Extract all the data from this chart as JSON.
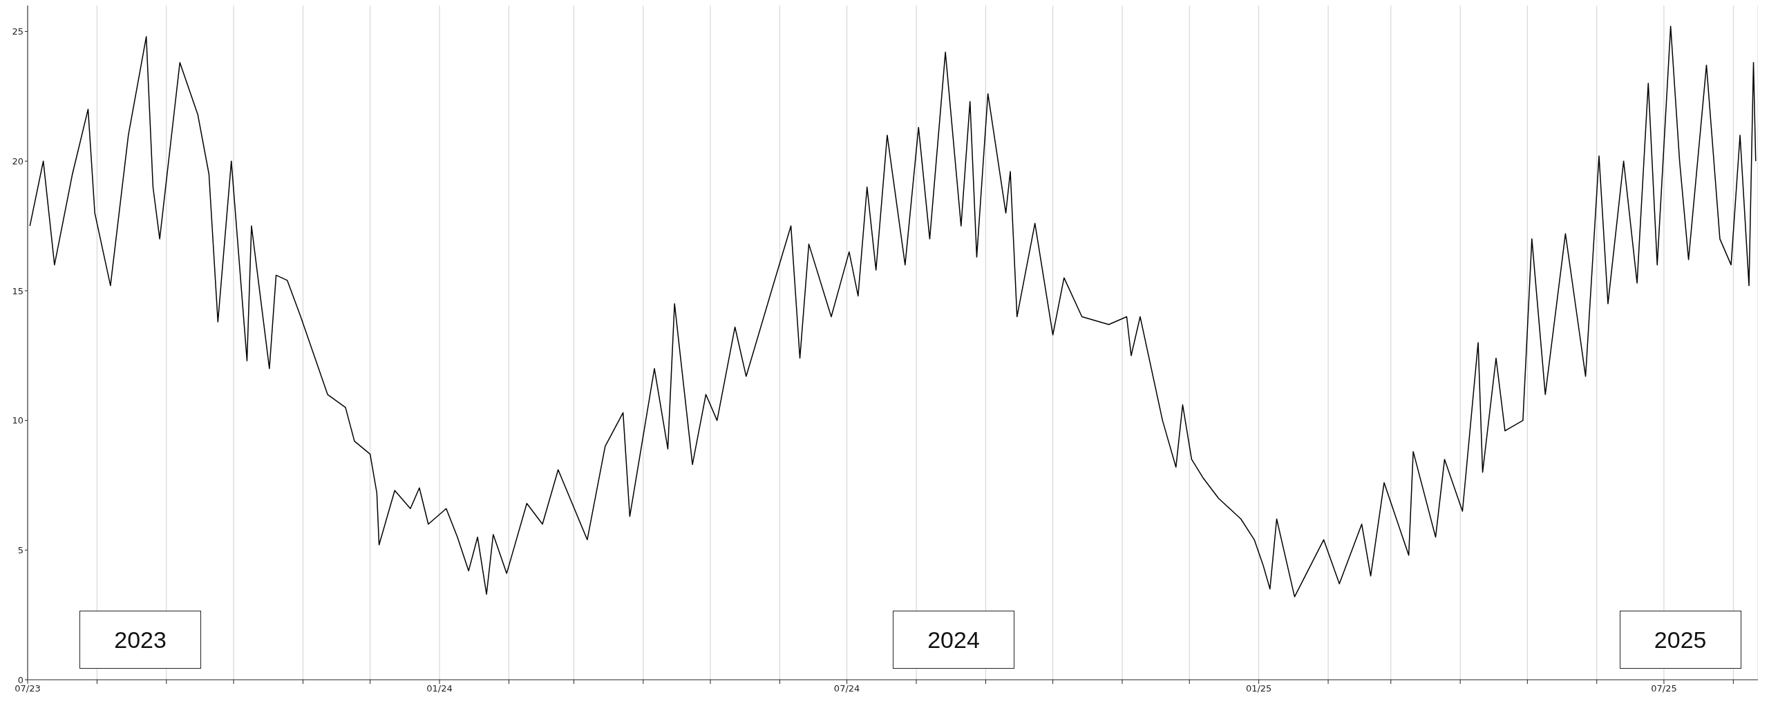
{
  "chart_data": {
    "type": "line",
    "x": [
      "2023-07-02",
      "2023-07-08",
      "2023-07-13",
      "2023-07-21",
      "2023-07-28",
      "2023-07-31",
      "2023-08-07",
      "2023-08-15",
      "2023-08-23",
      "2023-08-26",
      "2023-08-29",
      "2023-09-07",
      "2023-09-15",
      "2023-09-20",
      "2023-09-24",
      "2023-09-30",
      "2023-10-07",
      "2023-10-09",
      "2023-10-17",
      "2023-10-20",
      "2023-10-25",
      "2023-10-31",
      "2023-11-06",
      "2023-11-12",
      "2023-11-20",
      "2023-11-24",
      "2023-12-01",
      "2023-12-04",
      "2023-12-05",
      "2023-12-12",
      "2023-12-19",
      "2023-12-23",
      "2023-12-27",
      "2024-01-04",
      "2024-01-09",
      "2024-01-14",
      "2024-01-18",
      "2024-01-22",
      "2024-01-25",
      "2024-01-31",
      "2024-02-09",
      "2024-02-16",
      "2024-02-23",
      "2024-03-07",
      "2024-03-15",
      "2024-03-23",
      "2024-03-26",
      "2024-04-06",
      "2024-04-12",
      "2024-04-15",
      "2024-04-23",
      "2024-04-29",
      "2024-05-04",
      "2024-05-12",
      "2024-05-17",
      "2024-05-29",
      "2024-06-06",
      "2024-06-10",
      "2024-06-14",
      "2024-06-24",
      "2024-07-02",
      "2024-07-06",
      "2024-07-10",
      "2024-07-14",
      "2024-07-19",
      "2024-07-27",
      "2024-08-02",
      "2024-08-07",
      "2024-08-14",
      "2024-08-21",
      "2024-08-25",
      "2024-08-28",
      "2024-09-02",
      "2024-09-10",
      "2024-09-12",
      "2024-09-15",
      "2024-09-23",
      "2024-10-01",
      "2024-10-06",
      "2024-10-14",
      "2024-10-26",
      "2024-11-03",
      "2024-11-05",
      "2024-11-09",
      "2024-11-19",
      "2024-11-25",
      "2024-11-28",
      "2024-12-02",
      "2024-12-07",
      "2024-12-14",
      "2024-12-24",
      "2024-12-30",
      "2025-01-03",
      "2025-01-06",
      "2025-01-09",
      "2025-01-17",
      "2025-01-30",
      "2025-02-06",
      "2025-02-16",
      "2025-02-20",
      "2025-02-26",
      "2025-03-09",
      "2025-03-11",
      "2025-03-21",
      "2025-03-25",
      "2025-04-02",
      "2025-04-09",
      "2025-04-11",
      "2025-04-17",
      "2025-04-21",
      "2025-04-29",
      "2025-05-03",
      "2025-05-09",
      "2025-05-18",
      "2025-05-27",
      "2025-06-02",
      "2025-06-06",
      "2025-06-13",
      "2025-06-19",
      "2025-06-24",
      "2025-06-28",
      "2025-07-04",
      "2025-07-08",
      "2025-07-12",
      "2025-07-20",
      "2025-07-26",
      "2025-07-31",
      "2025-08-04",
      "2025-08-08",
      "2025-08-10",
      "2025-08-11"
    ],
    "series": [
      {
        "color": "#000000",
        "values": [
          17.5,
          20,
          16,
          19.5,
          22,
          18,
          15.2,
          21,
          24.8,
          19,
          17,
          23.8,
          21.8,
          19.5,
          13.8,
          20,
          12.3,
          17.5,
          12,
          15.6,
          15.4,
          14,
          12.5,
          11,
          10.5,
          9.2,
          8.7,
          7.2,
          5.2,
          7.3,
          6.6,
          7.4,
          6,
          6.6,
          5.5,
          4.2,
          5.5,
          3.3,
          5.6,
          4.1,
          6.8,
          6,
          8.1,
          5.4,
          9,
          10.3,
          6.3,
          12,
          8.9,
          14.5,
          8.3,
          11,
          10,
          13.6,
          11.7,
          15.2,
          17.5,
          12.4,
          16.8,
          14,
          16.5,
          14.8,
          19,
          15.8,
          21,
          16,
          21.3,
          17,
          24.2,
          17.5,
          22.3,
          16.3,
          22.6,
          18,
          19.6,
          14,
          17.6,
          13.3,
          15.5,
          14,
          13.7,
          14,
          12.5,
          14,
          10,
          8.2,
          10.6,
          8.5,
          7.8,
          7,
          6.2,
          5.4,
          4.4,
          3.5,
          6.2,
          3.2,
          5.4,
          3.7,
          6,
          4,
          7.6,
          4.8,
          8.8,
          5.5,
          8.5,
          6.5,
          13,
          8,
          12.4,
          9.6,
          10,
          17,
          11,
          17.2,
          11.7,
          20.2,
          14.5,
          20,
          15.3,
          23,
          16,
          25.2,
          20,
          16.2,
          23.7,
          17,
          16,
          21,
          15.2,
          23.8,
          20
        ]
      }
    ],
    "xlim": [
      "2023-07-01",
      "2025-08-12"
    ],
    "xticks": [
      {
        "value": "2023-07-01",
        "label": "07/23"
      },
      {
        "value": "2023-08-01",
        "label": null
      },
      {
        "value": "2023-09-01",
        "label": null
      },
      {
        "value": "2023-10-01",
        "label": null
      },
      {
        "value": "2023-11-01",
        "label": null
      },
      {
        "value": "2023-12-01",
        "label": null
      },
      {
        "value": "2024-01-01",
        "label": "01/24"
      },
      {
        "value": "2024-02-01",
        "label": null
      },
      {
        "value": "2024-03-01",
        "label": null
      },
      {
        "value": "2024-04-01",
        "label": null
      },
      {
        "value": "2024-05-01",
        "label": null
      },
      {
        "value": "2024-06-01",
        "label": null
      },
      {
        "value": "2024-07-01",
        "label": "07/24"
      },
      {
        "value": "2024-08-01",
        "label": null
      },
      {
        "value": "2024-09-01",
        "label": null
      },
      {
        "value": "2024-10-01",
        "label": null
      },
      {
        "value": "2024-11-01",
        "label": null
      },
      {
        "value": "2024-12-01",
        "label": null
      },
      {
        "value": "2025-01-01",
        "label": "01/25"
      },
      {
        "value": "2025-02-01",
        "label": null
      },
      {
        "value": "2025-03-01",
        "label": null
      },
      {
        "value": "2025-04-01",
        "label": null
      },
      {
        "value": "2025-05-01",
        "label": null
      },
      {
        "value": "2025-06-01",
        "label": null
      },
      {
        "value": "2025-07-01",
        "label": "07/25"
      },
      {
        "value": "2025-08-01",
        "label": null
      }
    ],
    "ylim": [
      0,
      26
    ],
    "yticks": [
      0,
      5,
      10,
      15,
      20,
      25
    ],
    "grid": "x",
    "marker": "none",
    "line_style": "solid",
    "annotations": [
      "2023",
      "2024",
      "2025"
    ]
  }
}
